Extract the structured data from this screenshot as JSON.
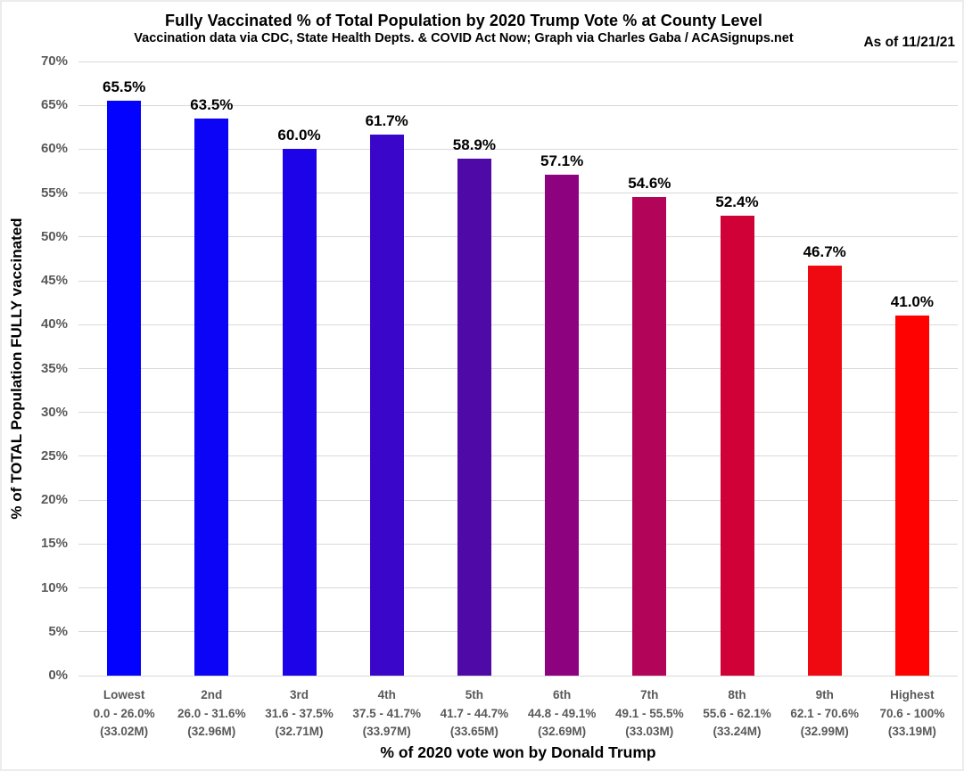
{
  "header": {
    "title": "Fully Vaccinated % of Total Population by 2020 Trump Vote % at County Level",
    "subtitle": "Vaccination data via CDC, State Health Depts. & COVID Act Now; Graph via Charles Gaba / ACASignups.net",
    "as_of": "As of 11/21/21"
  },
  "chart_data": {
    "type": "bar",
    "title": "Fully Vaccinated % of Total Population by 2020 Trump Vote % at County Level",
    "subtitle": "Vaccination data via CDC, State Health Depts. & COVID Act Now; Graph via Charles Gaba / ACASignups.net",
    "annotation": "As of 11/21/21",
    "xlabel": "% of 2020 vote won by Donald Trump",
    "ylabel": "% of TOTAL Population FULLY vaccinated",
    "ylim": [
      0,
      70
    ],
    "ytick_step": 5,
    "ytick_suffix": "%",
    "grid": true,
    "legend_position": "none",
    "categories": [
      {
        "rank": "Lowest",
        "range": "0.0 - 26.0%",
        "population": "(33.02M)"
      },
      {
        "rank": "2nd",
        "range": "26.0 - 31.6%",
        "population": "(32.96M)"
      },
      {
        "rank": "3rd",
        "range": "31.6 - 37.5%",
        "population": "(32.71M)"
      },
      {
        "rank": "4th",
        "range": "37.5 - 41.7%",
        "population": "(33.97M)"
      },
      {
        "rank": "5th",
        "range": "41.7 - 44.7%",
        "population": "(33.65M)"
      },
      {
        "rank": "6th",
        "range": "44.8 - 49.1%",
        "population": "(32.69M)"
      },
      {
        "rank": "7th",
        "range": "49.1 - 55.5%",
        "population": "(33.03M)"
      },
      {
        "rank": "8th",
        "range": "55.6 - 62.1%",
        "population": "(33.24M)"
      },
      {
        "rank": "9th",
        "range": "62.1 - 70.6%",
        "population": "(32.99M)"
      },
      {
        "rank": "Highest",
        "range": "70.6 - 100%",
        "population": "(33.19M)"
      }
    ],
    "values": [
      65.5,
      63.5,
      60.0,
      61.7,
      58.9,
      57.1,
      54.6,
      52.4,
      46.7,
      41.0
    ],
    "value_labels": [
      "65.5%",
      "63.5%",
      "60.0%",
      "61.7%",
      "58.9%",
      "57.1%",
      "54.6%",
      "52.4%",
      "46.7%",
      "41.0%"
    ],
    "bar_colors": [
      "#0202fe",
      "#0b04f6",
      "#1c03e8",
      "#3a06c9",
      "#4f09a7",
      "#8d027f",
      "#b20458",
      "#d00137",
      "#ef0a12",
      "#fe0101"
    ],
    "colors": {
      "gridline": "#d9d9d9",
      "tick_label": "#595959",
      "category_label": "#595959",
      "value_label": "#000000",
      "background": "#ffffff"
    }
  }
}
